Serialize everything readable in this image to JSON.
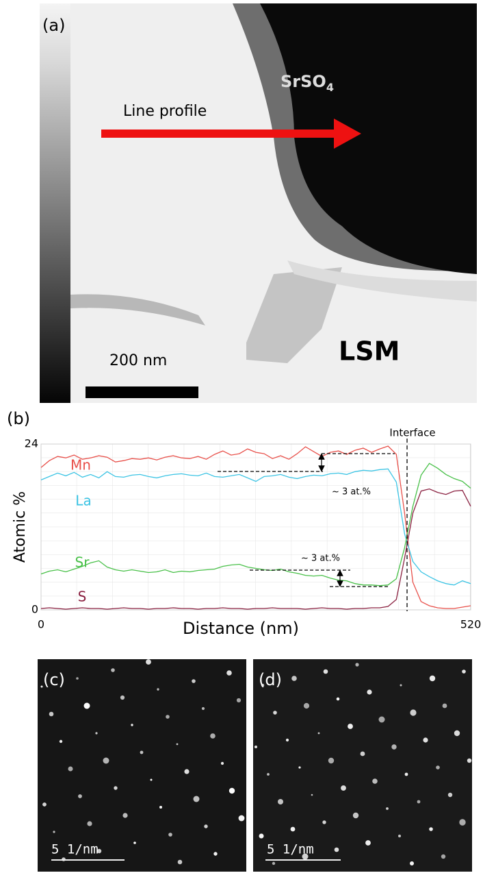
{
  "panels": {
    "a": {
      "label": "(a)",
      "compound": "SrSO",
      "compound_sub": "4",
      "arrow_label": "Line profile",
      "region_label": "LSM",
      "scale_label": "200 nm"
    },
    "c": {
      "label": "(c)",
      "scale_label": "5 1/nm"
    },
    "d": {
      "label": "(d)",
      "scale_label": "5 1/nm"
    }
  },
  "chart_data": {
    "type": "line",
    "panel_label": "(b)",
    "x_label": "Distance (nm)",
    "y_label": "Atomic %",
    "x": [
      0,
      10,
      20,
      30,
      40,
      50,
      60,
      70,
      80,
      90,
      100,
      110,
      120,
      130,
      140,
      150,
      160,
      170,
      180,
      190,
      200,
      210,
      220,
      230,
      240,
      250,
      260,
      270,
      280,
      290,
      300,
      310,
      320,
      330,
      340,
      350,
      360,
      370,
      380,
      390,
      400,
      410,
      420,
      430,
      440,
      450,
      460,
      470,
      480,
      490,
      500,
      510,
      520
    ],
    "xlim": [
      0,
      520
    ],
    "xticks": [
      0,
      520
    ],
    "ylim": [
      0,
      24
    ],
    "yticks": [
      0,
      24
    ],
    "grid": true,
    "series": [
      {
        "name": "Mn",
        "color": "#e8504a",
        "values": [
          20.6,
          21.6,
          22.2,
          22.0,
          22.4,
          21.8,
          22.0,
          22.3,
          22.1,
          21.4,
          21.6,
          21.9,
          21.8,
          22.0,
          21.7,
          22.1,
          22.3,
          22.0,
          21.9,
          22.2,
          21.8,
          22.5,
          23.0,
          22.4,
          22.6,
          23.3,
          22.8,
          22.6,
          21.9,
          22.3,
          21.8,
          22.6,
          23.6,
          22.9,
          22.2,
          22.8,
          23.0,
          22.5,
          23.1,
          23.4,
          22.8,
          23.3,
          23.7,
          22.5,
          14.0,
          4.0,
          1.2,
          0.6,
          0.3,
          0.2,
          0.2,
          0.4,
          0.6
        ]
      },
      {
        "name": "La",
        "color": "#3cc4e4",
        "values": [
          18.8,
          19.3,
          19.8,
          19.4,
          19.9,
          19.2,
          19.6,
          19.1,
          20.0,
          19.3,
          19.2,
          19.5,
          19.6,
          19.3,
          19.1,
          19.4,
          19.6,
          19.7,
          19.5,
          19.4,
          19.8,
          19.3,
          19.2,
          19.4,
          19.6,
          19.1,
          18.6,
          19.3,
          19.4,
          19.6,
          19.2,
          19.0,
          19.3,
          19.5,
          19.4,
          19.7,
          19.8,
          19.6,
          20.0,
          20.2,
          20.1,
          20.3,
          20.4,
          18.5,
          11.0,
          7.0,
          5.5,
          4.8,
          4.2,
          3.8,
          3.6,
          4.2,
          3.8
        ]
      },
      {
        "name": "Sr",
        "color": "#48c048",
        "values": [
          5.2,
          5.6,
          5.8,
          5.5,
          5.9,
          6.3,
          6.8,
          7.1,
          6.2,
          5.8,
          5.6,
          5.8,
          5.6,
          5.4,
          5.5,
          5.8,
          5.4,
          5.6,
          5.5,
          5.7,
          5.8,
          5.9,
          6.3,
          6.5,
          6.6,
          6.2,
          6.0,
          5.8,
          5.7,
          5.9,
          5.5,
          5.3,
          5.0,
          4.9,
          5.0,
          4.6,
          4.3,
          4.2,
          3.8,
          3.6,
          3.6,
          3.5,
          3.6,
          4.5,
          9.0,
          15.0,
          19.5,
          21.2,
          20.5,
          19.6,
          19.0,
          18.6,
          17.6
        ]
      },
      {
        "name": "S",
        "color": "#8a2040",
        "values": [
          0.2,
          0.3,
          0.2,
          0.1,
          0.2,
          0.3,
          0.2,
          0.2,
          0.1,
          0.2,
          0.3,
          0.2,
          0.2,
          0.1,
          0.2,
          0.2,
          0.3,
          0.2,
          0.2,
          0.1,
          0.2,
          0.2,
          0.3,
          0.2,
          0.2,
          0.1,
          0.2,
          0.2,
          0.3,
          0.2,
          0.2,
          0.2,
          0.1,
          0.2,
          0.3,
          0.2,
          0.2,
          0.1,
          0.2,
          0.2,
          0.3,
          0.3,
          0.5,
          1.5,
          7.5,
          14.0,
          17.2,
          17.5,
          17.0,
          16.7,
          17.2,
          17.3,
          15.0
        ]
      }
    ],
    "interface": {
      "label": "Interface",
      "x": 443
    },
    "annotations": [
      "~ 3 at.%",
      "~ 3 at.%"
    ]
  }
}
